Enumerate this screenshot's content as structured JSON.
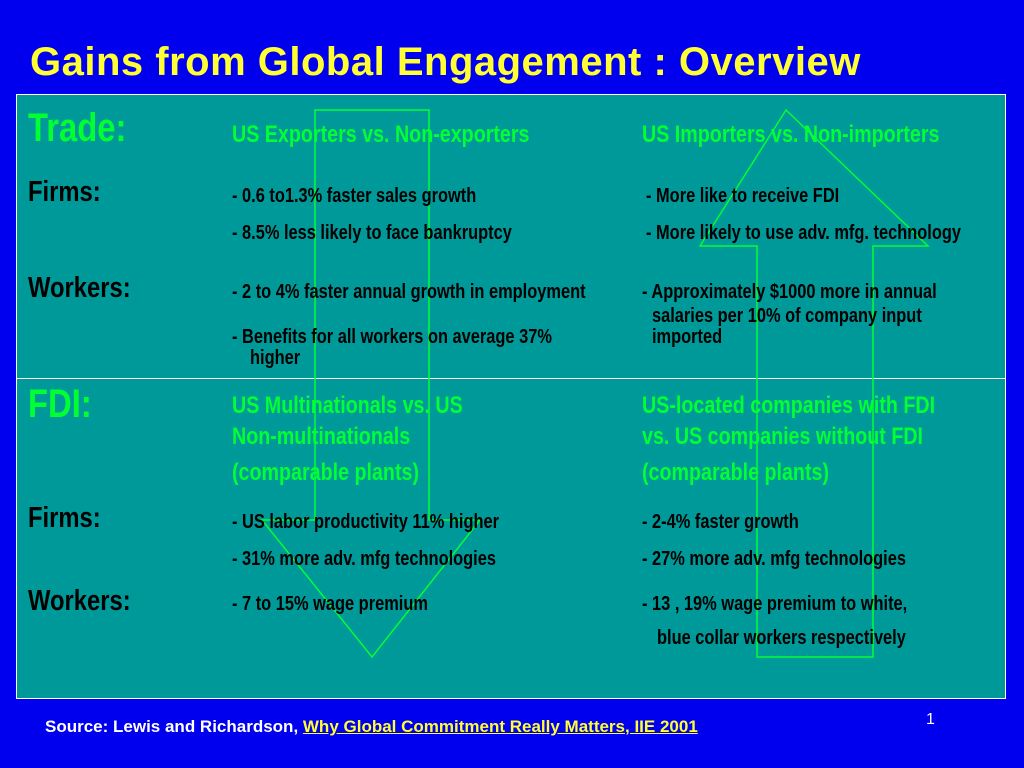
{
  "title": "Gains from Global Engagement : Overview",
  "trade": {
    "label": "Trade:",
    "col1_header": "US Exporters vs. Non-exporters",
    "col2_header": "US Importers vs. Non-importers",
    "firms_label": "Firms:",
    "firms_col1": [
      "- 0.6 to1.3% faster sales growth",
      "- 8.5% less likely to face bankruptcy"
    ],
    "firms_col2": [
      "- More like to receive FDI",
      "- More likely to use adv. mfg. technology"
    ],
    "workers_label": "Workers:",
    "workers_col1": [
      "- 2 to 4% faster annual growth in employment",
      "- Benefits for all workers on average 37%",
      "higher"
    ],
    "workers_col2": [
      "- Approximately $1000 more in annual",
      "salaries per 10% of company input",
      "imported"
    ]
  },
  "fdi": {
    "label": "FDI:",
    "col1_header": [
      "US Multinationals vs. US",
      "Non-multinationals",
      "(comparable plants)"
    ],
    "col2_header": [
      "US-located companies with FDI",
      "vs. US companies without FDI",
      "(comparable plants)"
    ],
    "firms_label": "Firms:",
    "firms_col1": [
      "- US labor productivity 11% higher",
      "- 31% more adv. mfg technologies"
    ],
    "firms_col2": [
      "- 2-4% faster growth",
      "- 27% more adv. mfg technologies"
    ],
    "workers_label": "Workers:",
    "workers_col1": [
      "- 7 to 15% wage premium"
    ],
    "workers_col2": [
      "- 13 , 19% wage premium to white,",
      "blue collar workers respectively"
    ]
  },
  "footer": {
    "source_prefix": "Source:  Lewis and Richardson, ",
    "source_citation": "Why Global Commitment Really Matters, IIE 2001",
    "page_number": "1"
  },
  "colors": {
    "background": "#0000ee",
    "panel": "#009999",
    "title": "#ffff33",
    "heading": "#00ff33"
  },
  "icons": [
    "down-arrow-outline-icon",
    "up-arrow-outline-icon"
  ]
}
